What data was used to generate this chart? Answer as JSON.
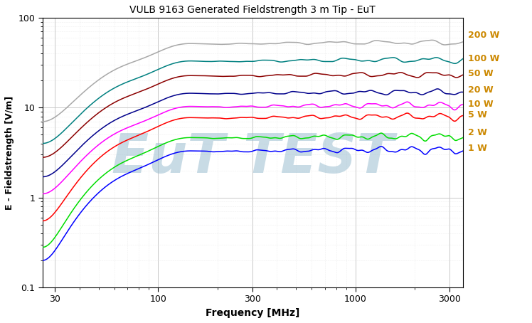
{
  "title": "VULB 9163 Generated Fieldstrength 3 m Tip - EuT",
  "xlabel": "Frequency [MHz]",
  "ylabel": "E - Fieldstrength [V/m]",
  "xlim": [
    26,
    3500
  ],
  "ylim": [
    0.1,
    100
  ],
  "watermark": "EuT TEST",
  "series": [
    {
      "label": "200 W",
      "color": "#a8a8a8",
      "start_val": 7.0,
      "plateau_val": 50.0,
      "end_val": 70.0,
      "ripple_amp": 0.06,
      "ripple_freq": 18
    },
    {
      "label": "100 W",
      "color": "#008080",
      "start_val": 4.0,
      "plateau_val": 32.0,
      "end_val": 40.0,
      "ripple_amp": 0.07,
      "ripple_freq": 20
    },
    {
      "label": "50 W",
      "color": "#8B0000",
      "start_val": 2.8,
      "plateau_val": 22.0,
      "end_val": 28.0,
      "ripple_amp": 0.07,
      "ripple_freq": 22
    },
    {
      "label": "20 W",
      "color": "#00008B",
      "start_val": 1.7,
      "plateau_val": 14.0,
      "end_val": 18.0,
      "ripple_amp": 0.07,
      "ripple_freq": 24
    },
    {
      "label": "10 W",
      "color": "#ff00ff",
      "start_val": 1.1,
      "plateau_val": 10.0,
      "end_val": 12.5,
      "ripple_amp": 0.08,
      "ripple_freq": 26
    },
    {
      "label": "5 W",
      "color": "#ff0000",
      "start_val": 0.55,
      "plateau_val": 7.5,
      "end_val": 9.5,
      "ripple_amp": 0.08,
      "ripple_freq": 26
    },
    {
      "label": "2 W",
      "color": "#00dd00",
      "start_val": 0.28,
      "plateau_val": 4.5,
      "end_val": 6.0,
      "ripple_amp": 0.09,
      "ripple_freq": 28
    },
    {
      "label": "1 W",
      "color": "#0000ff",
      "start_val": 0.2,
      "plateau_val": 3.2,
      "end_val": 4.0,
      "ripple_amp": 0.09,
      "ripple_freq": 28
    }
  ],
  "background_color": "#ffffff",
  "grid_major_color": "#c8c8c8",
  "grid_minor_color": "#e0e0e0",
  "label_color": "#cc8800",
  "watermark_color": "#92b8cc",
  "watermark_alpha": 0.5
}
